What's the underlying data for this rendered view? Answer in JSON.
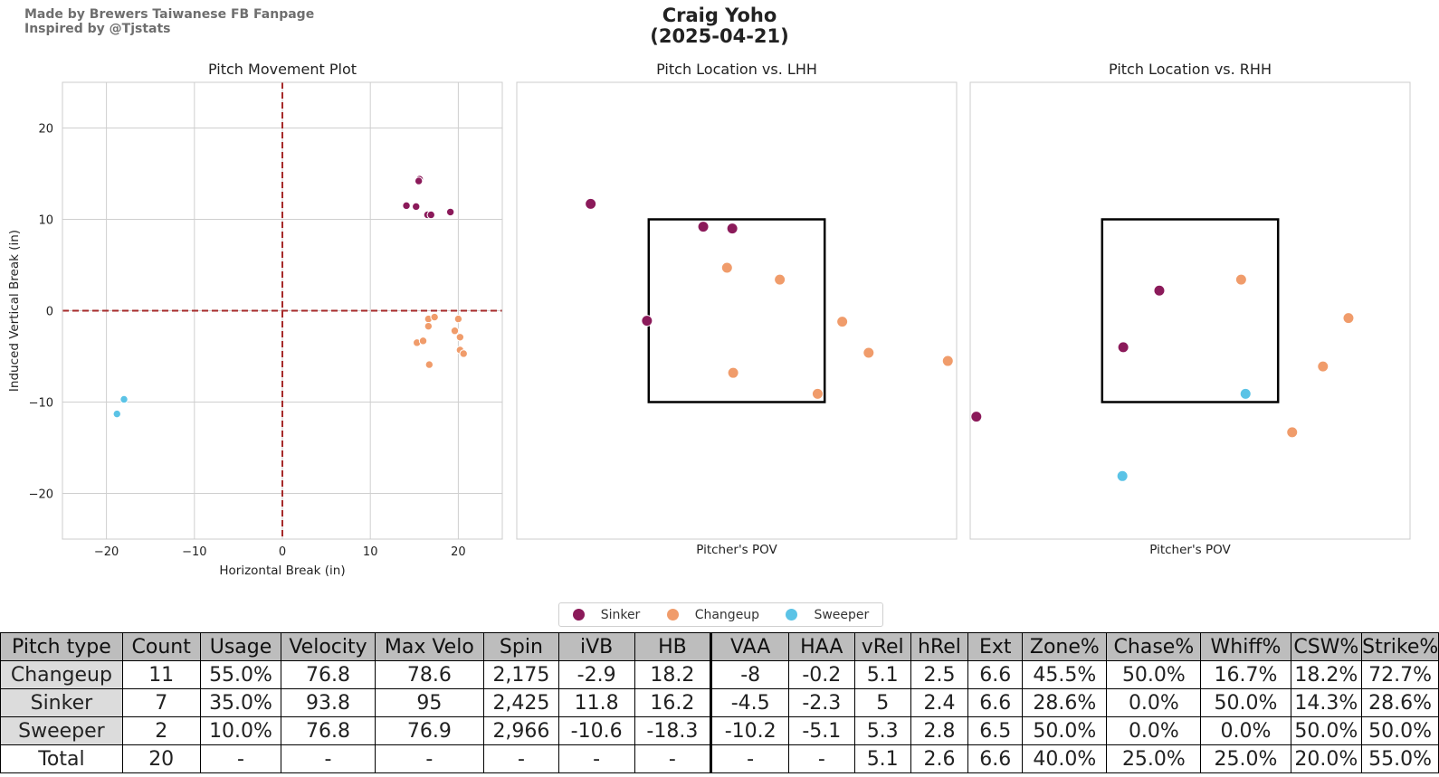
{
  "header": {
    "credit_line1": "Made by Brewers Taiwanese FB Fanpage",
    "credit_line2": "Inspired by @Tjstats",
    "title_line1": "Craig Yoho",
    "title_line2": "(2025-04-21)"
  },
  "colors": {
    "Sinker": "#8b1a5a",
    "Changeup": "#f09c6b",
    "Sweeper": "#5bc3e6",
    "refline": "#a62a2a"
  },
  "legend": [
    {
      "label": "Sinker",
      "color": "#8b1a5a"
    },
    {
      "label": "Changeup",
      "color": "#f09c6b"
    },
    {
      "label": "Sweeper",
      "color": "#5bc3e6"
    }
  ],
  "chart_data": [
    {
      "type": "scatter",
      "title": "Pitch Movement Plot",
      "xlabel": "Horizontal Break (in)",
      "ylabel": "Induced Vertical Break (in)",
      "xlim": [
        -25,
        25
      ],
      "ylim": [
        -25,
        25
      ],
      "xticks": [
        -20,
        -10,
        0,
        10,
        20
      ],
      "yticks": [
        -20,
        -10,
        0,
        10,
        20
      ],
      "grid": true,
      "series": [
        {
          "name": "Sinker",
          "color": "#8b1a5a",
          "x": [
            15.6,
            14.1,
            15.2,
            16.5,
            16.9,
            19.1,
            15.5
          ],
          "y": [
            14.4,
            11.5,
            11.4,
            10.5,
            10.5,
            10.8,
            14.2
          ]
        },
        {
          "name": "Changeup",
          "color": "#f09c6b",
          "x": [
            16.6,
            17.3,
            16.6,
            15.3,
            16.0,
            16.7,
            19.6,
            20.0,
            20.2,
            20.2,
            20.6
          ],
          "y": [
            -0.9,
            -0.7,
            -1.7,
            -3.5,
            -3.3,
            -5.9,
            -2.2,
            -0.9,
            -2.9,
            -4.3,
            -4.7
          ]
        },
        {
          "name": "Sweeper",
          "color": "#5bc3e6",
          "x": [
            -18.0,
            -18.8
          ],
          "y": [
            -9.7,
            -11.3
          ]
        }
      ]
    },
    {
      "type": "scatter",
      "title": "Pitch Location vs. LHH",
      "xlabel": "Pitcher's POV",
      "xlim": [
        -2.5,
        2.5
      ],
      "ylim": [
        -2.5,
        2.5
      ],
      "strike_zone": {
        "x": [
          -1,
          1
        ],
        "y": [
          -1,
          1
        ]
      },
      "grid": false,
      "series": [
        {
          "name": "Sinker",
          "color": "#8b1a5a",
          "x": [
            -1.66,
            -0.38,
            -0.05,
            -1.02
          ],
          "y": [
            1.17,
            0.92,
            0.9,
            -0.11
          ]
        },
        {
          "name": "Changeup",
          "color": "#f09c6b",
          "x": [
            -0.11,
            0.49,
            1.2,
            1.5,
            2.4,
            -0.04,
            0.92
          ],
          "y": [
            0.47,
            0.34,
            -0.12,
            -0.46,
            -0.55,
            -0.68,
            -0.91
          ]
        }
      ]
    },
    {
      "type": "scatter",
      "title": "Pitch Location vs. RHH",
      "xlabel": "Pitcher's POV",
      "xlim": [
        -2.5,
        2.5
      ],
      "ylim": [
        -2.5,
        2.5
      ],
      "strike_zone": {
        "x": [
          -1,
          1
        ],
        "y": [
          -1,
          1
        ]
      },
      "grid": false,
      "series": [
        {
          "name": "Sinker",
          "color": "#8b1a5a",
          "x": [
            -0.35,
            -0.76,
            -2.43
          ],
          "y": [
            0.22,
            -0.4,
            -1.16
          ]
        },
        {
          "name": "Changeup",
          "color": "#f09c6b",
          "x": [
            0.58,
            1.8,
            1.51,
            1.16
          ],
          "y": [
            0.34,
            -0.08,
            -0.61,
            -1.33
          ]
        },
        {
          "name": "Sweeper",
          "color": "#5bc3e6",
          "x": [
            0.63,
            -0.77
          ],
          "y": [
            -0.91,
            -1.81
          ]
        }
      ]
    }
  ],
  "table": {
    "columns": [
      "Pitch type",
      "Count",
      "Usage",
      "Velocity",
      "Max Velo",
      "Spin",
      "iVB",
      "HB",
      "VAA",
      "HAA",
      "vRel",
      "hRel",
      "Ext",
      "Zone%",
      "Chase%",
      "Whiff%",
      "CSW%",
      "Strike%"
    ],
    "rows": [
      [
        "Changeup",
        "11",
        "55.0%",
        "76.8",
        "78.6",
        "2,175",
        "-2.9",
        "18.2",
        "-8",
        "-0.2",
        "5.1",
        "2.5",
        "6.6",
        "45.5%",
        "50.0%",
        "16.7%",
        "18.2%",
        "72.7%"
      ],
      [
        "Sinker",
        "7",
        "35.0%",
        "93.8",
        "95",
        "2,425",
        "11.8",
        "16.2",
        "-4.5",
        "-2.3",
        "5",
        "2.4",
        "6.6",
        "28.6%",
        "0.0%",
        "50.0%",
        "14.3%",
        "28.6%"
      ],
      [
        "Sweeper",
        "2",
        "10.0%",
        "76.8",
        "76.9",
        "2,966",
        "-10.6",
        "-18.3",
        "-10.2",
        "-5.1",
        "5.3",
        "2.8",
        "6.5",
        "50.0%",
        "0.0%",
        "0.0%",
        "50.0%",
        "50.0%"
      ],
      [
        "Total",
        "20",
        "-",
        "-",
        "-",
        "-",
        "-",
        "-",
        "-",
        "-",
        "5.1",
        "2.6",
        "6.6",
        "40.0%",
        "25.0%",
        "25.0%",
        "20.0%",
        "55.0%"
      ]
    ]
  }
}
